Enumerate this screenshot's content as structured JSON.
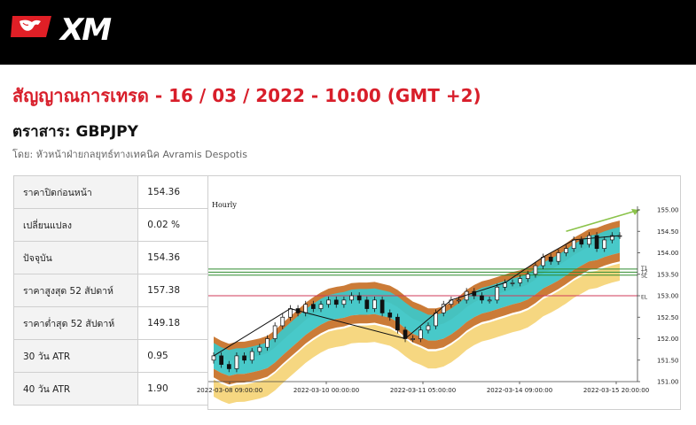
{
  "header": {
    "brand": "XM",
    "logo_icon": "bull-logo-icon",
    "background": "#000000"
  },
  "signal": {
    "title": "สัญญาณการเทรด - 16 / 03 / 2022 - 10:00 (GMT +2)",
    "instrument_label": "ตราสาร: GBPJPY",
    "author": "โดย: หัวหน้าฝ่ายกลยุทธ์ทางเทคนิค Avramis Despotis",
    "title_color": "#d81e2a"
  },
  "stats": [
    {
      "label": "ราคาปิดก่อนหน้า",
      "value": "154.36"
    },
    {
      "label": "เปลี่ยนแปลง",
      "value": "0.02 %"
    },
    {
      "label": "ปัจจุบัน",
      "value": "154.36"
    },
    {
      "label": "ราคาสูงสุด 52 สัปดาห์",
      "value": "157.38"
    },
    {
      "label": "ราคาต่ำสุด 52 สัปดาห์",
      "value": "149.18"
    },
    {
      "label": "30 วัน ATR",
      "value": "0.95"
    },
    {
      "label": "40 วัน ATR",
      "value": "1.90"
    }
  ],
  "chart_data": {
    "type": "candlestick",
    "timeframe_label": "Hourly",
    "x_tick_labels": [
      "2022-03-08 09:00:00",
      "2022-03-10 00:00:00",
      "2022-03-11 05:00:00",
      "2022-03-14 09:00:00",
      "2022-03-15 20:00:00"
    ],
    "y_ticks": [
      "155.00",
      "154.50",
      "154.00",
      "153.50",
      "153.00",
      "152.50",
      "152.00",
      "151.50",
      "151.00"
    ],
    "ylim": [
      151.0,
      155.0
    ],
    "levels": [
      {
        "label": "T1",
        "value": 153.62,
        "color": "#2e8b2e"
      },
      {
        "label": "T2",
        "value": 153.55,
        "color": "#2e8b2e"
      },
      {
        "label": "SL",
        "value": 153.48,
        "color": "#2e8b2e"
      },
      {
        "label": "EL",
        "value": 153.0,
        "color": "#d23a5a"
      }
    ],
    "close_series": [
      151.6,
      151.4,
      151.3,
      151.6,
      151.5,
      151.7,
      151.8,
      152.0,
      152.3,
      152.5,
      152.7,
      152.6,
      152.8,
      152.7,
      152.8,
      152.9,
      152.8,
      152.9,
      153.0,
      152.9,
      152.7,
      152.9,
      152.6,
      152.5,
      152.2,
      152.0,
      152.0,
      152.2,
      152.3,
      152.6,
      152.8,
      152.9,
      152.9,
      153.1,
      153.0,
      152.9,
      152.9,
      153.2,
      153.3,
      153.3,
      153.4,
      153.5,
      153.7,
      153.9,
      153.8,
      154.0,
      154.1,
      154.3,
      154.2,
      154.4,
      154.1,
      154.3,
      154.4,
      154.4
    ],
    "projection": {
      "from": 154.5,
      "to": 155.0
    },
    "colors": {
      "inner_band": "#3ec6c6",
      "middle_band": "#c8742c",
      "outer_band": "#f5d57a",
      "projection": "#8bc34a"
    }
  }
}
